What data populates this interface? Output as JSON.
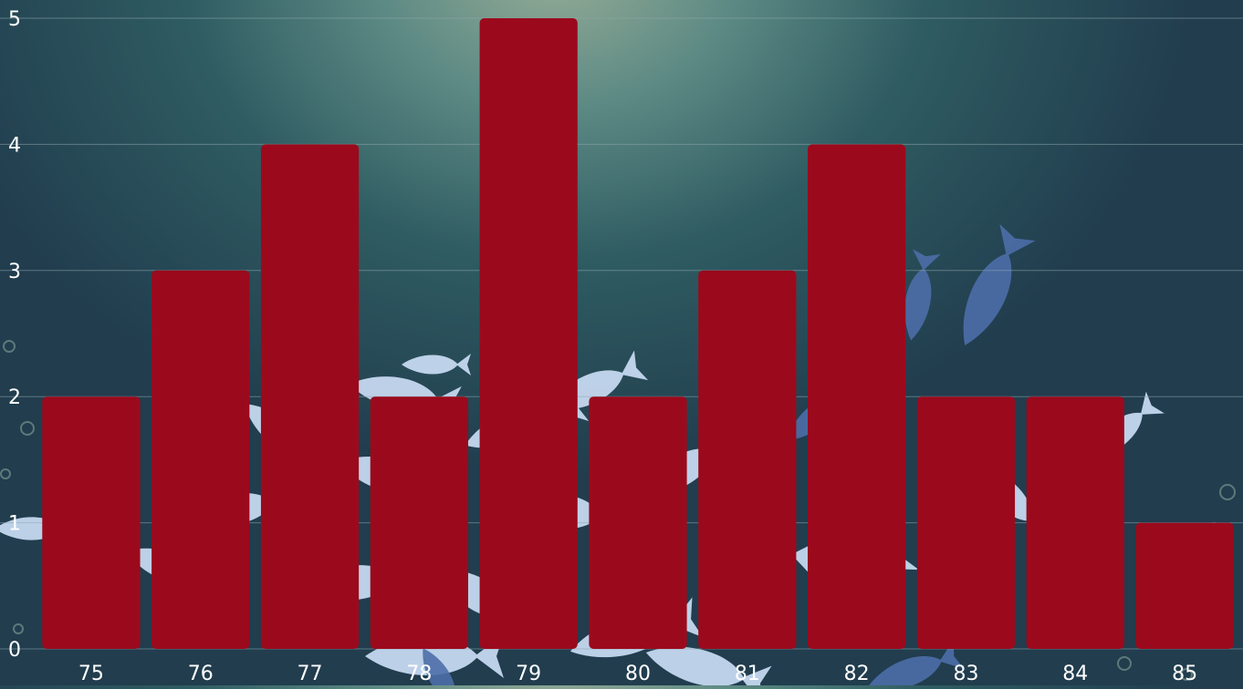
{
  "chart_data": {
    "type": "bar",
    "categories": [
      "75",
      "76",
      "77",
      "78",
      "79",
      "80",
      "81",
      "82",
      "83",
      "84",
      "85"
    ],
    "values": [
      2,
      3,
      4,
      2,
      5,
      2,
      3,
      4,
      2,
      2,
      1
    ],
    "ylim": [
      0,
      5
    ],
    "yticks": [
      "0",
      "1",
      "2",
      "3",
      "4",
      "5"
    ],
    "grid": true,
    "legend": "none",
    "title": "",
    "xlabel": "",
    "ylabel": "",
    "colors": {
      "bar": "#9b0a1c",
      "grid": "#8fa7ad",
      "tick_label": "#ffffff",
      "fish_light": "#c5d8f0",
      "fish_blue": "#4d6ea8"
    }
  }
}
